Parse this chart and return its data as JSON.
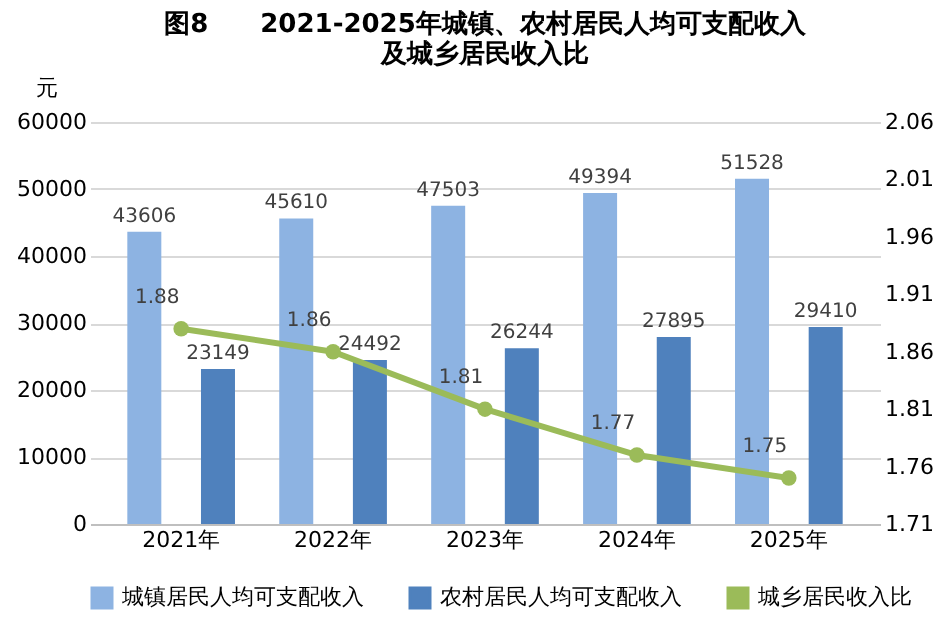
{
  "chart_data": {
    "type": "bar",
    "title": "图8　　2021-2025年城镇、农村居民人均可支配收入及城乡居民收入比",
    "ylabel": "元",
    "categories": [
      "2021年",
      "2022年",
      "2023年",
      "2024年",
      "2025年"
    ],
    "series": [
      {
        "name": "城镇居民人均可支配收入",
        "color": "#8db3e2",
        "values": [
          43606,
          45610,
          47503,
          49394,
          51528
        ]
      },
      {
        "name": "农村居民人均可支配收入",
        "color": "#4f81bd",
        "values": [
          23149,
          24492,
          26244,
          27895,
          29410
        ]
      },
      {
        "name": "城乡居民收入比",
        "type": "line",
        "axis": "y2",
        "color": "#9bbb59",
        "marker": "circle",
        "values": [
          1.88,
          1.86,
          1.81,
          1.77,
          1.75
        ]
      }
    ],
    "ylim": [
      0,
      60000
    ],
    "yticks": [
      0,
      10000,
      20000,
      30000,
      40000,
      50000,
      60000
    ],
    "y2lim": [
      1.71,
      2.06
    ],
    "y2ticks": [
      1.71,
      1.76,
      1.81,
      1.86,
      1.91,
      1.96,
      2.01,
      2.06
    ],
    "data_labels": true,
    "grid": "y",
    "legend": "bottom"
  }
}
